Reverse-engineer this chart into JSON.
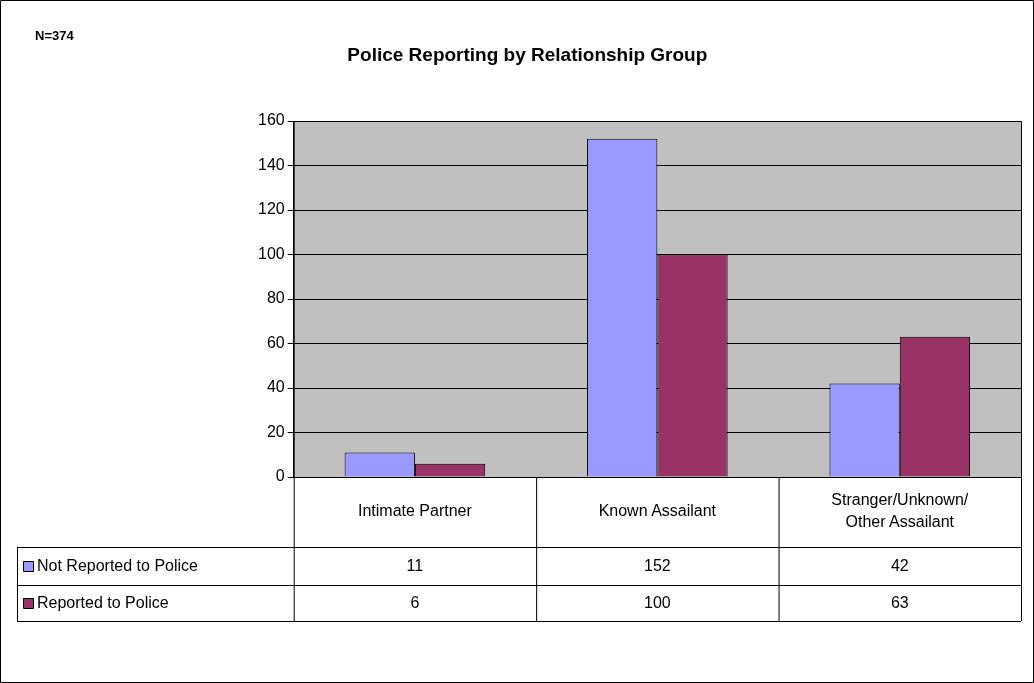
{
  "chart_data": {
    "type": "bar",
    "title": "Police Reporting by Relationship Group",
    "annotations": [
      "N=374"
    ],
    "categories": [
      "Intimate Partner",
      "Known Assailant",
      "Stranger/Unknown/\nOther Assailant"
    ],
    "series": [
      {
        "name": "Not Reported to Police",
        "color": "#9999ff",
        "values": [
          11,
          152,
          42
        ]
      },
      {
        "name": "Reported to Police",
        "color": "#993366",
        "values": [
          6,
          100,
          63
        ]
      }
    ],
    "ylim": [
      0,
      160
    ],
    "yticks": [
      0,
      20,
      40,
      60,
      80,
      100,
      120,
      140,
      160
    ],
    "grid": "y",
    "legend": "bottom left",
    "data_labels": true
  }
}
